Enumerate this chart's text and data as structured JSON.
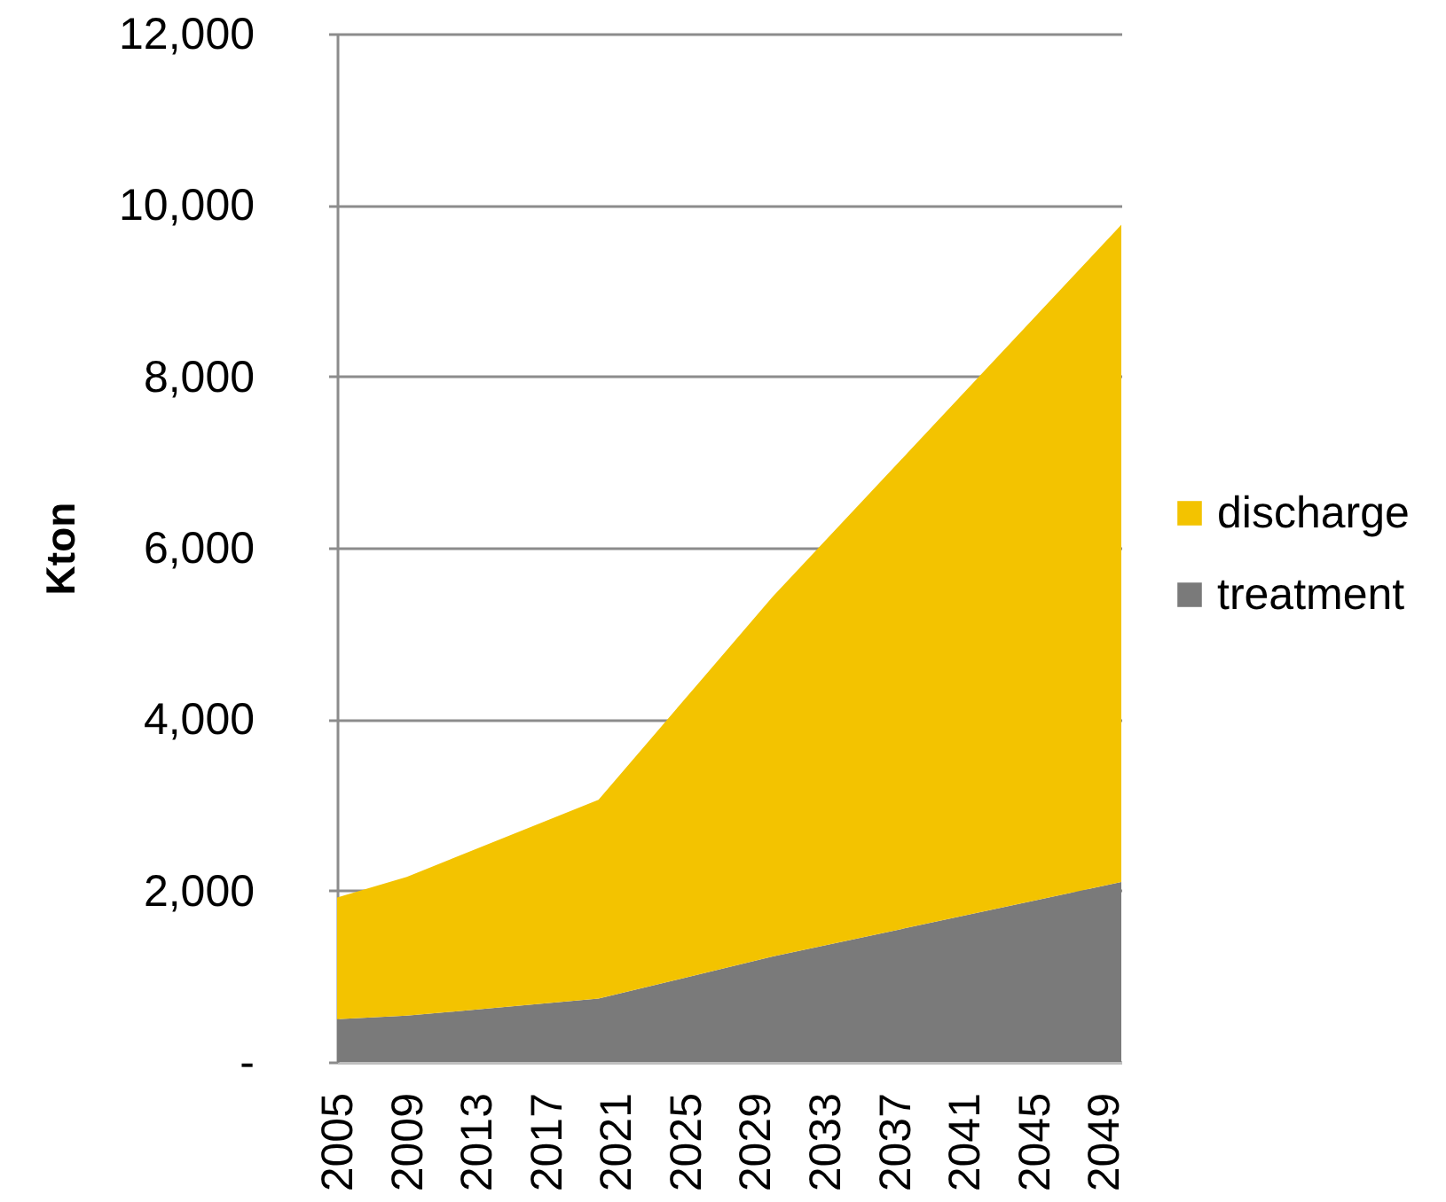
{
  "chart_data": {
    "type": "area",
    "ylabel": "Kton",
    "stacked": true,
    "grid": "y",
    "legend": "right",
    "x": [
      2005,
      2009,
      2020,
      2030,
      2050
    ],
    "xlim": [
      2005,
      2050
    ],
    "xticks": [
      2005,
      2009,
      2013,
      2017,
      2021,
      2025,
      2029,
      2033,
      2037,
      2041,
      2045,
      2049
    ],
    "ylim": [
      0,
      12000
    ],
    "yticks": [
      {
        "value": 0,
        "label": "-"
      },
      {
        "value": 2000,
        "label": "2,000"
      },
      {
        "value": 4000,
        "label": "4,000"
      },
      {
        "value": 6000,
        "label": "6,000"
      },
      {
        "value": 8000,
        "label": "8,000"
      },
      {
        "value": 10000,
        "label": "10,000"
      },
      {
        "value": 12000,
        "label": "12,000"
      }
    ],
    "series": [
      {
        "name": "treatment",
        "color": "#7a7a7a",
        "values": [
          500,
          540,
          740,
          1230,
          2100
        ]
      },
      {
        "name": "discharge",
        "color": "#f3c300",
        "values": [
          1420,
          1620,
          2320,
          4200,
          7670
        ]
      }
    ]
  }
}
